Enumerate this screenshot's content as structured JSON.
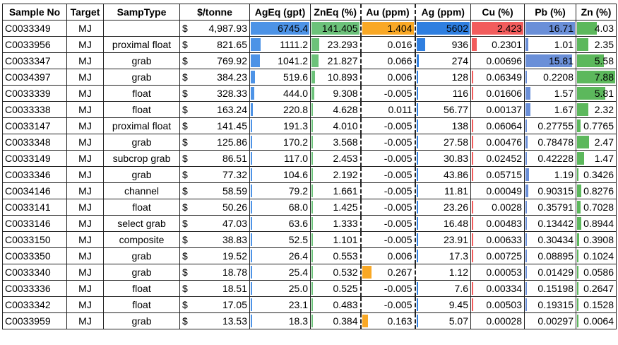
{
  "colors": {
    "AgEq": "#4d93e6",
    "ZnEq": "#6cc27a",
    "Au": "#f9a825",
    "Ag": "#2f7fe0",
    "Cu": "#f25c5c",
    "Pb": "#6a8fd8",
    "Zn": "#5cb85c"
  },
  "headers": [
    "Sample No",
    "Target",
    "SampType",
    "$/tonne",
    "AgEq (gpt)",
    "ZnEq (%)",
    "Au (ppm)",
    "Ag (ppm)",
    "Cu (%)",
    "Pb (%)",
    "Zn (%)"
  ],
  "rows": [
    {
      "sample": "C0033349",
      "target": "MJ",
      "type": "",
      "currency": "$",
      "price": "4,987.93",
      "ageq": "6745.4",
      "zneq": "141.405",
      "au": "1.404",
      "ag": "5602",
      "cu": "2.423",
      "pb": "16.71",
      "zn": "4.03",
      "ageq_v": 1.0,
      "zneq_v": 1.0,
      "au_v": 1.0,
      "ag_v": 1.0,
      "cu_v": 1.0,
      "pb_v": 1.0,
      "zn_v": 0.51
    },
    {
      "sample": "C0033956",
      "target": "MJ",
      "type": "proximal float",
      "currency": "$",
      "price": "821.65",
      "ageq": "1111.2",
      "zneq": "23.293",
      "au": "0.016",
      "ag": "936",
      "cu": "0.2301",
      "pb": "1.01",
      "zn": "2.35",
      "ageq_v": 0.165,
      "zneq_v": 0.165,
      "au_v": 0.0,
      "ag_v": 0.167,
      "cu_v": 0.095,
      "pb_v": 0.06,
      "zn_v": 0.3
    },
    {
      "sample": "C0033347",
      "target": "MJ",
      "type": "grab",
      "currency": "$",
      "price": "769.92",
      "ageq": "1041.2",
      "zneq": "21.827",
      "au": "0.066",
      "ag": "274",
      "cu": "0.00696",
      "pb": "15.81",
      "zn": "5.58",
      "ageq_v": 0.154,
      "zneq_v": 0.154,
      "au_v": 0.0,
      "ag_v": 0.049,
      "cu_v": 0.0,
      "pb_v": 0.946,
      "zn_v": 0.708
    },
    {
      "sample": "C0034397",
      "target": "MJ",
      "type": "grab",
      "currency": "$",
      "price": "384.23",
      "ageq": "519.6",
      "zneq": "10.893",
      "au": "0.006",
      "ag": "128",
      "cu": "0.06349",
      "pb": "0.2208",
      "zn": "7.88",
      "ageq_v": 0.077,
      "zneq_v": 0.077,
      "au_v": 0.0,
      "ag_v": 0.023,
      "cu_v": 0.026,
      "pb_v": 0.013,
      "zn_v": 1.0
    },
    {
      "sample": "C0033339",
      "target": "MJ",
      "type": "float",
      "currency": "$",
      "price": "328.33",
      "ageq": "444.0",
      "zneq": "9.308",
      "au": "-0.005",
      "ag": "116",
      "cu": "0.01606",
      "pb": "1.57",
      "zn": "5.81",
      "ageq_v": 0.066,
      "zneq_v": 0.066,
      "au_v": 0.0,
      "ag_v": 0.021,
      "cu_v": 0.007,
      "pb_v": 0.094,
      "zn_v": 0.737
    },
    {
      "sample": "C0033338",
      "target": "MJ",
      "type": "float",
      "currency": "$",
      "price": "163.24",
      "ageq": "220.8",
      "zneq": "4.628",
      "au": "0.011",
      "ag": "56.77",
      "cu": "0.00137",
      "pb": "1.67",
      "zn": "2.32",
      "ageq_v": 0.033,
      "zneq_v": 0.033,
      "au_v": 0.0,
      "ag_v": 0.01,
      "cu_v": 0.0,
      "pb_v": 0.1,
      "zn_v": 0.294
    },
    {
      "sample": "C0033147",
      "target": "MJ",
      "type": "proximal float",
      "currency": "$",
      "price": "141.45",
      "ageq": "191.3",
      "zneq": "4.010",
      "au": "-0.005",
      "ag": "138",
      "cu": "0.06064",
      "pb": "0.27755",
      "zn": "0.7765",
      "ageq_v": 0.028,
      "zneq_v": 0.028,
      "au_v": 0.0,
      "ag_v": 0.025,
      "cu_v": 0.025,
      "pb_v": 0.017,
      "zn_v": 0.099
    },
    {
      "sample": "C0033348",
      "target": "MJ",
      "type": "grab",
      "currency": "$",
      "price": "125.86",
      "ageq": "170.2",
      "zneq": "3.568",
      "au": "-0.005",
      "ag": "27.58",
      "cu": "0.00476",
      "pb": "0.78478",
      "zn": "2.47",
      "ageq_v": 0.025,
      "zneq_v": 0.025,
      "au_v": 0.0,
      "ag_v": 0.005,
      "cu_v": 0.002,
      "pb_v": 0.047,
      "zn_v": 0.313
    },
    {
      "sample": "C0033149",
      "target": "MJ",
      "type": "subcrop grab",
      "currency": "$",
      "price": "86.51",
      "ageq": "117.0",
      "zneq": "2.453",
      "au": "-0.005",
      "ag": "30.83",
      "cu": "0.02452",
      "pb": "0.42228",
      "zn": "1.47",
      "ageq_v": 0.017,
      "zneq_v": 0.017,
      "au_v": 0.0,
      "ag_v": 0.006,
      "cu_v": 0.01,
      "pb_v": 0.025,
      "zn_v": 0.187
    },
    {
      "sample": "C0033346",
      "target": "MJ",
      "type": "grab",
      "currency": "$",
      "price": "77.32",
      "ageq": "104.6",
      "zneq": "2.192",
      "au": "-0.005",
      "ag": "43.86",
      "cu": "0.05715",
      "pb": "1.19",
      "zn": "0.3426",
      "ageq_v": 0.016,
      "zneq_v": 0.016,
      "au_v": 0.0,
      "ag_v": 0.008,
      "cu_v": 0.024,
      "pb_v": 0.071,
      "zn_v": 0.043
    },
    {
      "sample": "C0034146",
      "target": "MJ",
      "type": "channel",
      "currency": "$",
      "price": "58.59",
      "ageq": "79.2",
      "zneq": "1.661",
      "au": "-0.005",
      "ag": "11.81",
      "cu": "0.00049",
      "pb": "0.90315",
      "zn": "0.8276",
      "ageq_v": 0.012,
      "zneq_v": 0.012,
      "au_v": 0.0,
      "ag_v": 0.002,
      "cu_v": 0.0,
      "pb_v": 0.054,
      "zn_v": 0.105
    },
    {
      "sample": "C0033141",
      "target": "MJ",
      "type": "float",
      "currency": "$",
      "price": "50.26",
      "ageq": "68.0",
      "zneq": "1.425",
      "au": "-0.005",
      "ag": "23.26",
      "cu": "0.0028",
      "pb": "0.35791",
      "zn": "0.7028",
      "ageq_v": 0.01,
      "zneq_v": 0.01,
      "au_v": 0.0,
      "ag_v": 0.004,
      "cu_v": 0.001,
      "pb_v": 0.021,
      "zn_v": 0.089
    },
    {
      "sample": "C0033146",
      "target": "MJ",
      "type": "select grab",
      "currency": "$",
      "price": "47.03",
      "ageq": "63.6",
      "zneq": "1.333",
      "au": "-0.005",
      "ag": "16.48",
      "cu": "0.00483",
      "pb": "0.13442",
      "zn": "0.8944",
      "ageq_v": 0.009,
      "zneq_v": 0.009,
      "au_v": 0.0,
      "ag_v": 0.003,
      "cu_v": 0.002,
      "pb_v": 0.008,
      "zn_v": 0.113
    },
    {
      "sample": "C0033150",
      "target": "MJ",
      "type": "composite",
      "currency": "$",
      "price": "38.83",
      "ageq": "52.5",
      "zneq": "1.101",
      "au": "-0.005",
      "ag": "23.91",
      "cu": "0.00633",
      "pb": "0.30434",
      "zn": "0.3908",
      "ageq_v": 0.008,
      "zneq_v": 0.008,
      "au_v": 0.0,
      "ag_v": 0.004,
      "cu_v": 0.003,
      "pb_v": 0.018,
      "zn_v": 0.05
    },
    {
      "sample": "C0033350",
      "target": "MJ",
      "type": "grab",
      "currency": "$",
      "price": "19.52",
      "ageq": "26.4",
      "zneq": "0.553",
      "au": "0.006",
      "ag": "17.3",
      "cu": "0.00725",
      "pb": "0.08895",
      "zn": "0.1024",
      "ageq_v": 0.004,
      "zneq_v": 0.004,
      "au_v": 0.0,
      "ag_v": 0.003,
      "cu_v": 0.003,
      "pb_v": 0.005,
      "zn_v": 0.013
    },
    {
      "sample": "C0033340",
      "target": "MJ",
      "type": "grab",
      "currency": "$",
      "price": "18.78",
      "ageq": "25.4",
      "zneq": "0.532",
      "au": "0.267",
      "ag": "1.12",
      "cu": "0.00053",
      "pb": "0.01429",
      "zn": "0.0586",
      "ageq_v": 0.004,
      "zneq_v": 0.004,
      "au_v": 0.19,
      "ag_v": 0.0,
      "cu_v": 0.0,
      "pb_v": 0.001,
      "zn_v": 0.007
    },
    {
      "sample": "C0033336",
      "target": "MJ",
      "type": "float",
      "currency": "$",
      "price": "18.51",
      "ageq": "25.0",
      "zneq": "0.525",
      "au": "-0.005",
      "ag": "7.6",
      "cu": "0.00334",
      "pb": "0.15198",
      "zn": "0.2647",
      "ageq_v": 0.004,
      "zneq_v": 0.004,
      "au_v": 0.0,
      "ag_v": 0.001,
      "cu_v": 0.001,
      "pb_v": 0.009,
      "zn_v": 0.034
    },
    {
      "sample": "C0033342",
      "target": "MJ",
      "type": "float",
      "currency": "$",
      "price": "17.05",
      "ageq": "23.1",
      "zneq": "0.483",
      "au": "-0.005",
      "ag": "9.45",
      "cu": "0.00503",
      "pb": "0.19315",
      "zn": "0.1528",
      "ageq_v": 0.003,
      "zneq_v": 0.003,
      "au_v": 0.0,
      "ag_v": 0.002,
      "cu_v": 0.002,
      "pb_v": 0.012,
      "zn_v": 0.019
    },
    {
      "sample": "C0033959",
      "target": "MJ",
      "type": "grab",
      "currency": "$",
      "price": "13.53",
      "ageq": "18.3",
      "zneq": "0.384",
      "au": "0.163",
      "ag": "5.07",
      "cu": "0.00028",
      "pb": "0.00297",
      "zn": "0.0064",
      "ageq_v": 0.003,
      "zneq_v": 0.003,
      "au_v": 0.116,
      "ag_v": 0.001,
      "cu_v": 0.0,
      "pb_v": 0.0,
      "zn_v": 0.001
    }
  ]
}
